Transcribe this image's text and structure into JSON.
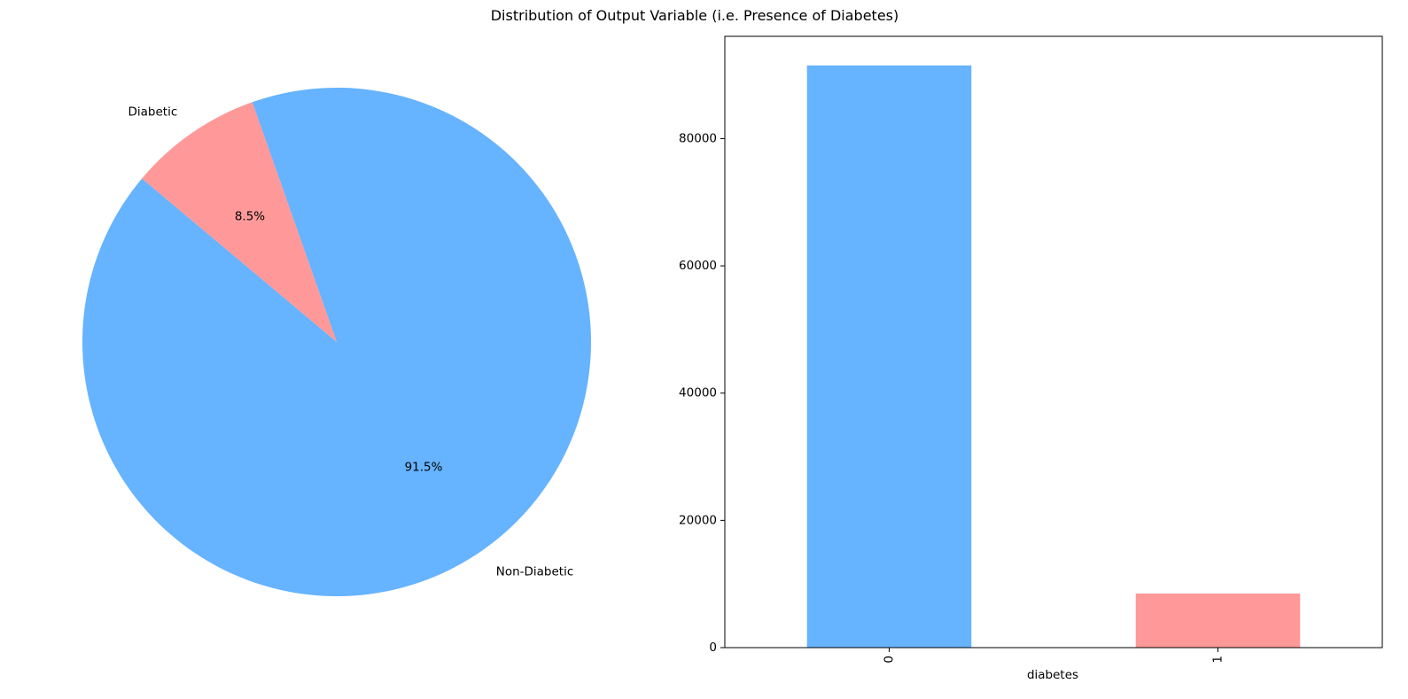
{
  "figure": {
    "title": "Distribution of Output Variable (i.e. Presence of Diabetes)"
  },
  "chart_data": [
    {
      "type": "pie",
      "slices": [
        {
          "label": "Non-Diabetic",
          "value": 91.5,
          "pct_label": "91.5%",
          "color": "#66b3ff"
        },
        {
          "label": "Diabetic",
          "value": 8.5,
          "pct_label": "8.5%",
          "color": "#ff9999"
        }
      ],
      "start_angle": 140,
      "direction": "counterclockwise"
    },
    {
      "type": "bar",
      "categories": [
        "0",
        "1"
      ],
      "values": [
        91500,
        8500
      ],
      "colors": [
        "#66b3ff",
        "#ff9999"
      ],
      "xlabel": "diabetes",
      "ylabel": "",
      "ylim": [
        0,
        96075
      ],
      "yticks": [
        0,
        20000,
        40000,
        60000,
        80000
      ],
      "grid": false
    }
  ]
}
